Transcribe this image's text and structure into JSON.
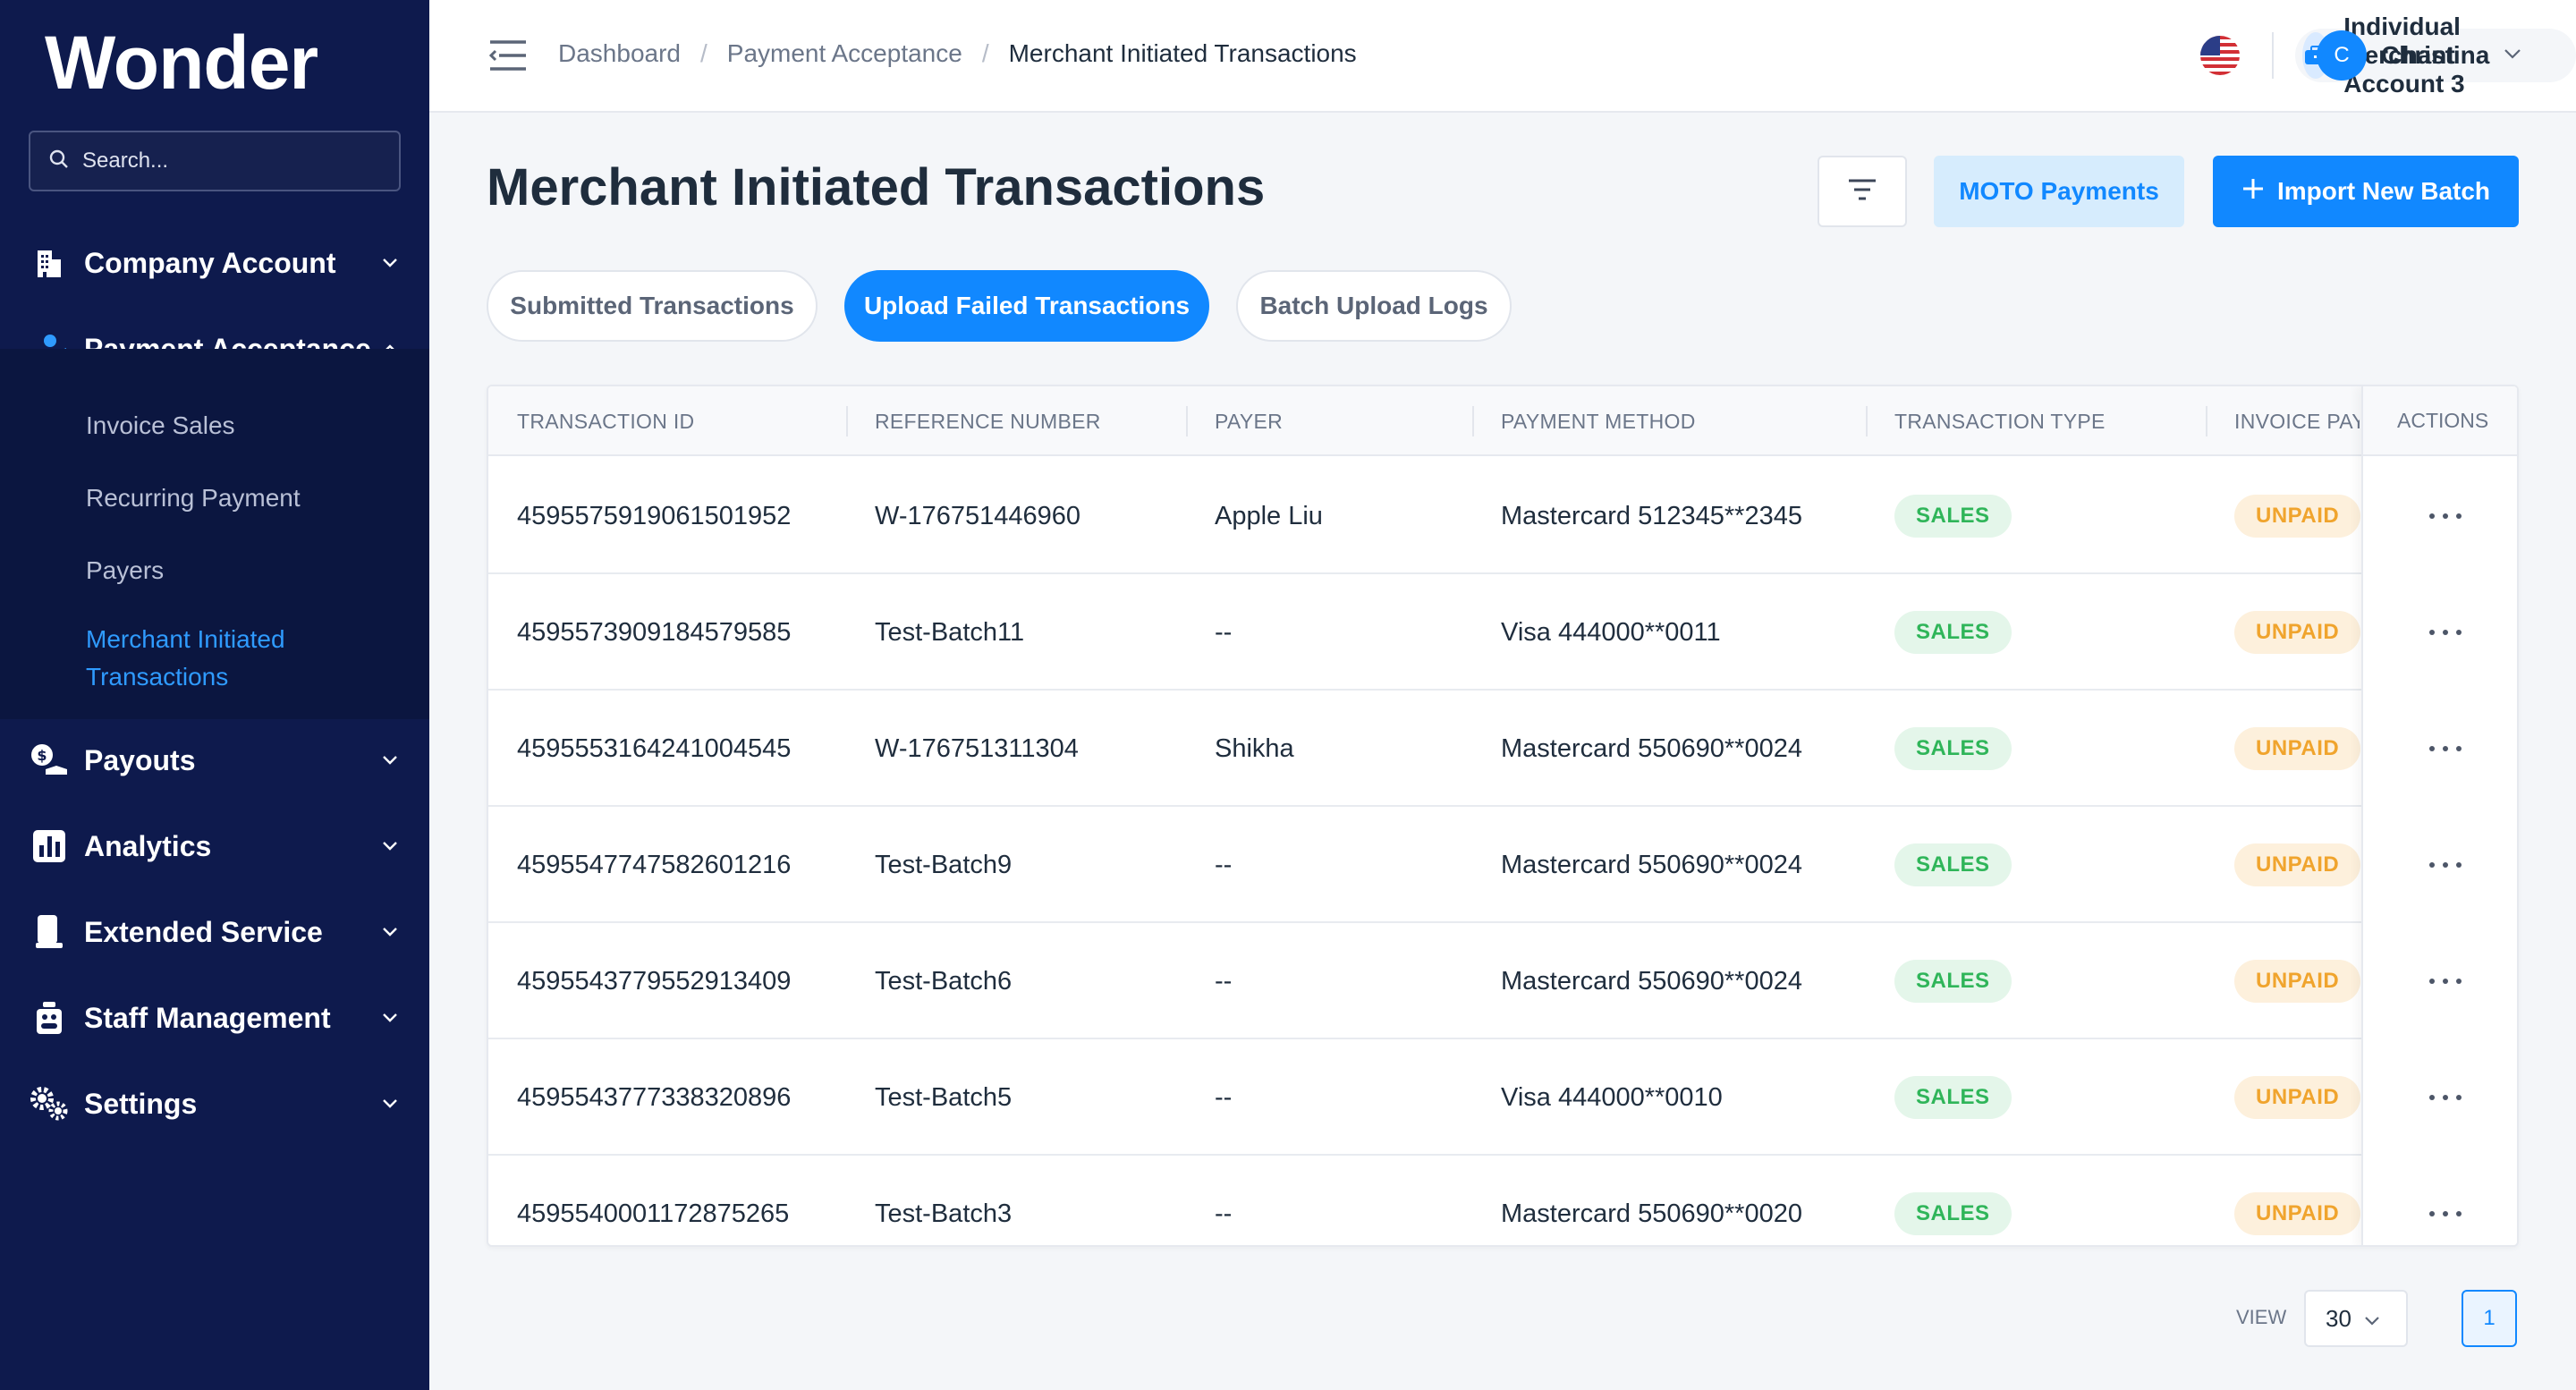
{
  "brand": {
    "logo_text": "Wonder",
    "accent": "#1188ff",
    "sidebar_bg": "#0e1a4d"
  },
  "sidebar": {
    "search_placeholder": "Search...",
    "items": [
      {
        "label": "Company Account",
        "icon": "building-icon",
        "expanded": false
      },
      {
        "label": "Payment Acceptance",
        "icon": "hand-user-icon",
        "expanded": true
      },
      {
        "label": "Payouts",
        "icon": "money-icon",
        "expanded": false
      },
      {
        "label": "Analytics",
        "icon": "bar-chart-icon",
        "expanded": false
      },
      {
        "label": "Extended Service",
        "icon": "device-icon",
        "expanded": false
      },
      {
        "label": "Staff Management",
        "icon": "staff-icon",
        "expanded": false
      },
      {
        "label": "Settings",
        "icon": "gears-icon",
        "expanded": false
      }
    ],
    "subitems": [
      {
        "label": "Invoice Sales",
        "active": false
      },
      {
        "label": "Recurring Payment",
        "active": false
      },
      {
        "label": "Payers",
        "active": false
      },
      {
        "label": "Merchant Initiated Transactions",
        "active": true
      }
    ]
  },
  "header": {
    "breadcrumb": [
      "Dashboard",
      "Payment Acceptance",
      "Merchant Initiated Transactions"
    ],
    "account_name": "Individual Merchant Account 3",
    "user_initial": "C",
    "user_name": "Christina"
  },
  "main": {
    "title": "Merchant Initiated Transactions",
    "moto_label": "MOTO Payments",
    "import_label": "Import New Batch",
    "tabs": [
      {
        "label": "Submitted Transactions",
        "active": false
      },
      {
        "label": "Upload Failed Transactions",
        "active": true
      },
      {
        "label": "Batch Upload Logs",
        "active": false
      }
    ]
  },
  "table": {
    "columns": [
      "TRANSACTION ID",
      "REFERENCE NUMBER",
      "PAYER",
      "PAYMENT METHOD",
      "TRANSACTION TYPE",
      "INVOICE PAYMENT STATUS",
      "ACTIONS"
    ],
    "rows": [
      {
        "id": "4595575919061501952",
        "ref": "W-176751446960",
        "payer": "Apple Liu",
        "method": "Mastercard 512345**2345",
        "type": "SALES",
        "status": "UNPAID"
      },
      {
        "id": "4595573909184579585",
        "ref": "Test-Batch11",
        "payer": "--",
        "method": "Visa 444000**0011",
        "type": "SALES",
        "status": "UNPAID"
      },
      {
        "id": "4595553164241004545",
        "ref": "W-176751311304",
        "payer": "Shikha",
        "method": "Mastercard 550690**0024",
        "type": "SALES",
        "status": "UNPAID"
      },
      {
        "id": "4595547747582601216",
        "ref": "Test-Batch9",
        "payer": "--",
        "method": "Mastercard 550690**0024",
        "type": "SALES",
        "status": "UNPAID"
      },
      {
        "id": "4595543779552913409",
        "ref": "Test-Batch6",
        "payer": "--",
        "method": "Mastercard 550690**0024",
        "type": "SALES",
        "status": "UNPAID"
      },
      {
        "id": "4595543777338320896",
        "ref": "Test-Batch5",
        "payer": "--",
        "method": "Visa 444000**0010",
        "type": "SALES",
        "status": "UNPAID"
      },
      {
        "id": "4595540001172875265",
        "ref": "Test-Batch3",
        "payer": "--",
        "method": "Mastercard 550690**0020",
        "type": "SALES",
        "status": "UNPAID"
      }
    ]
  },
  "pagination": {
    "view_label": "VIEW",
    "page_size": "30",
    "current_page": "1"
  }
}
